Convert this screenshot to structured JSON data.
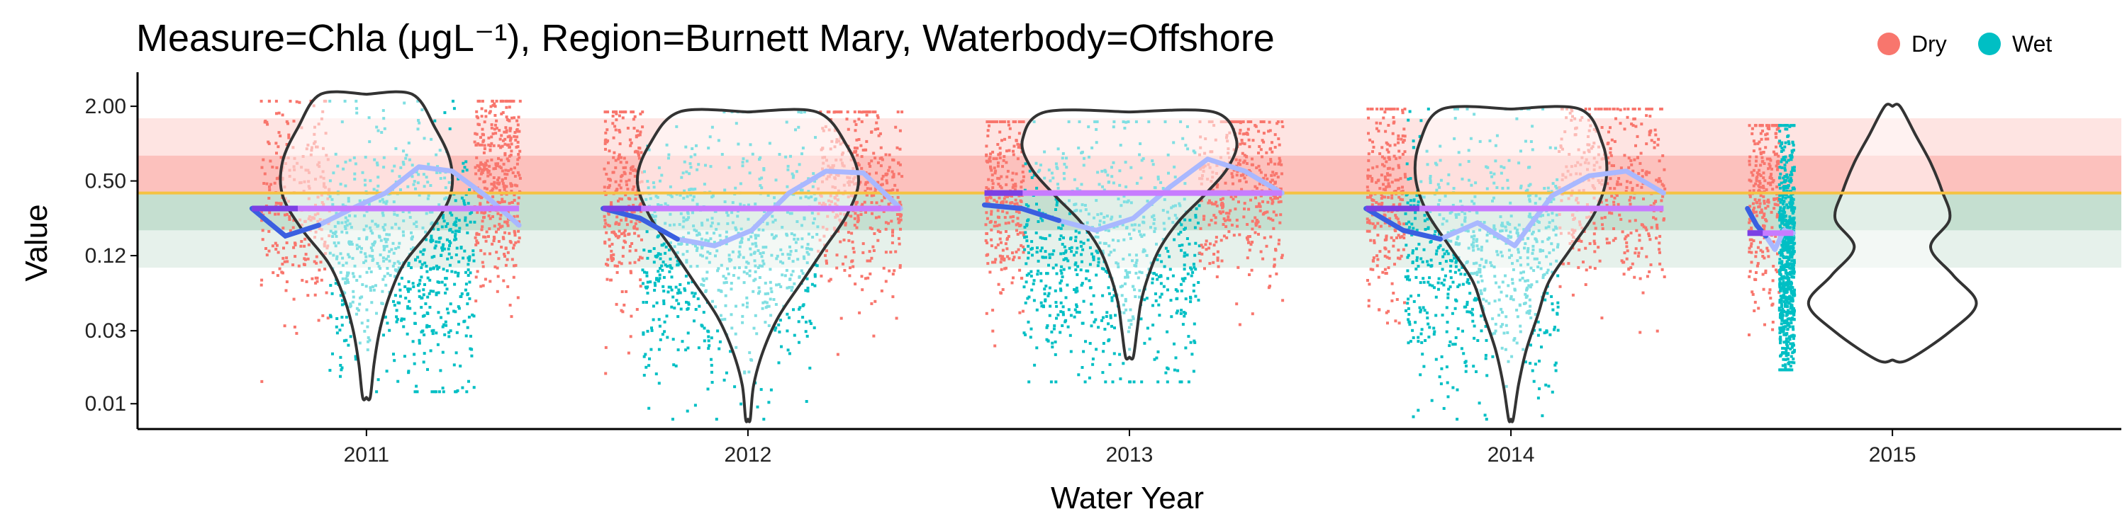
{
  "chart_data": {
    "type": "scatter",
    "title": "Measure=Chla (μgL⁻¹), Region=Burnett Mary, Waterbody=Offshore",
    "xlabel": "Water Year",
    "ylabel": "Value",
    "y_scale": "log",
    "ylim": [
      0.005,
      3.3
    ],
    "xlim": [
      2010.4,
      2015.6
    ],
    "x_ticks": [
      2011,
      2012,
      2013,
      2014,
      2015
    ],
    "y_ticks": [
      {
        "value": 2.0,
        "label": "2.00"
      },
      {
        "value": 0.5,
        "label": "0.50"
      },
      {
        "value": 0.125,
        "label": "0.12"
      },
      {
        "value": 0.031,
        "label": "0.03"
      },
      {
        "value": 0.008,
        "label": "0.01"
      }
    ],
    "legend": {
      "position": "top-right",
      "entries": [
        {
          "label": "Dry",
          "color": "#F8766D"
        },
        {
          "label": "Wet",
          "color": "#00BFC4"
        }
      ]
    },
    "colors": {
      "dry": "#F8766D",
      "wet": "#00BFC4",
      "dry_light": "#FBB4AE",
      "wet_light": "#7FDDE0",
      "guideline": "#F5C242",
      "mean_line": "#C77CFF",
      "mean_line_dark": "#7B3FE4",
      "smooth_dark": "#3A5FE0",
      "smooth_light": "#A9B8FF",
      "violin": "#333333"
    },
    "guideline_value": 0.4,
    "bands": [
      {
        "from": 0.4,
        "to": 0.8,
        "color": "#F8766D",
        "opacity": 0.45
      },
      {
        "from": 0.8,
        "to": 1.6,
        "color": "#F8766D",
        "opacity": 0.2
      },
      {
        "from": 0.2,
        "to": 0.4,
        "color": "#2E8B57",
        "opacity": 0.28
      },
      {
        "from": 0.1,
        "to": 0.2,
        "color": "#2E8B57",
        "opacity": 0.12
      }
    ],
    "years": [
      {
        "year": 2011,
        "dry1": [
          2010.72,
          2010.9
        ],
        "wet": [
          2010.9,
          2011.28
        ],
        "dry2": [
          2011.28,
          2011.4
        ],
        "obs_range": [
          2010.7,
          2011.4
        ],
        "mean": 0.3,
        "mean_dark": [
          2010.7,
          2010.82
        ],
        "violin": {
          "min": 0.009,
          "max": 2.5,
          "half_width": [
            0.12,
            0.18,
            0.22,
            0.22,
            0.17,
            0.1,
            0.06,
            0.035,
            0.02,
            0.01
          ]
        },
        "smooth": [
          0.3,
          0.18,
          0.22,
          0.3,
          0.4,
          0.65,
          0.6,
          0.38,
          0.22
        ],
        "points": {
          "lo": 0.01,
          "hi": 2.2
        }
      },
      {
        "year": 2012,
        "dry1": [
          2011.62,
          2011.72
        ],
        "wet": [
          2011.72,
          2012.18
        ],
        "dry2": [
          2012.18,
          2012.4
        ],
        "obs_range": [
          2011.62,
          2012.4
        ],
        "mean": 0.3,
        "mean_dark": [
          2011.62,
          2011.72
        ],
        "violin": {
          "min": 0.006,
          "max": 1.8,
          "half_width": [
            0.18,
            0.26,
            0.29,
            0.26,
            0.2,
            0.14,
            0.08,
            0.04,
            0.015,
            0.006
          ]
        },
        "smooth": [
          0.3,
          0.25,
          0.17,
          0.15,
          0.2,
          0.4,
          0.6,
          0.58,
          0.3
        ],
        "points": {
          "lo": 0.006,
          "hi": 1.8
        }
      },
      {
        "year": 2013,
        "dry1": [
          2012.62,
          2012.72
        ],
        "wet": [
          2012.72,
          2013.18
        ],
        "dry2": [
          2013.18,
          2013.4
        ],
        "obs_range": [
          2012.62,
          2013.4
        ],
        "mean": 0.4,
        "mean_dark": [
          2012.62,
          2012.72
        ],
        "violin": {
          "min": 0.019,
          "max": 1.8,
          "half_width": [
            0.22,
            0.28,
            0.26,
            0.2,
            0.13,
            0.08,
            0.05,
            0.03,
            0.02,
            0.01
          ]
        },
        "smooth": [
          0.32,
          0.3,
          0.24,
          0.2,
          0.25,
          0.45,
          0.75,
          0.6,
          0.4
        ],
        "points": {
          "lo": 0.012,
          "hi": 1.5
        }
      },
      {
        "year": 2014,
        "dry1": [
          2013.62,
          2013.72
        ],
        "wet": [
          2013.72,
          2014.12
        ],
        "dry2": [
          2014.12,
          2014.4
        ],
        "obs_range": [
          2013.62,
          2014.4
        ],
        "mean": 0.3,
        "mean_dark": [
          2013.62,
          2013.76
        ],
        "violin": {
          "min": 0.006,
          "max": 1.9,
          "half_width": [
            0.18,
            0.24,
            0.25,
            0.22,
            0.16,
            0.1,
            0.07,
            0.04,
            0.02,
            0.006
          ]
        },
        "smooth": [
          0.3,
          0.2,
          0.17,
          0.23,
          0.15,
          0.38,
          0.55,
          0.6,
          0.4
        ],
        "points": {
          "lo": 0.006,
          "hi": 1.9
        }
      },
      {
        "year": 2015,
        "dry1": [
          2014.62,
          2014.7
        ],
        "wet": [
          2014.7,
          2014.74
        ],
        "dry2": null,
        "obs_range": [
          2014.62,
          2014.74
        ],
        "mean": 0.19,
        "mean_dark": [
          2014.62,
          2014.66
        ],
        "violin": {
          "min": 0.018,
          "max": 2.0,
          "half_width": [
            0.02,
            0.06,
            0.1,
            0.13,
            0.15,
            0.1,
            0.16,
            0.22,
            0.15,
            0.04
          ]
        },
        "smooth": [
          0.3,
          0.22,
          0.18,
          0.14,
          0.2,
          0.19
        ],
        "points": {
          "lo": 0.015,
          "hi": 1.4
        }
      }
    ]
  }
}
